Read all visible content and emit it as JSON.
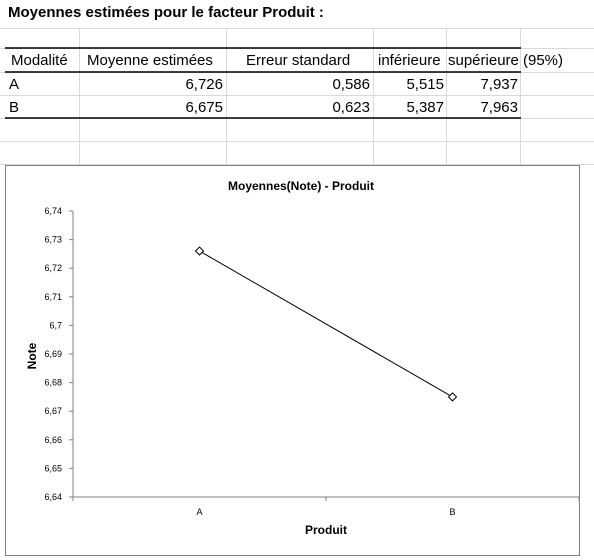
{
  "sheet": {
    "title": "Moyennes estimées pour le facteur Produit :",
    "headers": [
      "Modalité",
      "Moyenne estimées",
      "Erreur standard",
      "inférieure",
      "supérieure",
      "(95%)"
    ],
    "rows": [
      [
        "A",
        "6,726",
        "0,586",
        "5,515",
        "7,937"
      ],
      [
        "B",
        "6,675",
        "0,623",
        "5,387",
        "7,963"
      ]
    ]
  },
  "chart_data": {
    "type": "line",
    "title": "Moyennes(Note) - Produit",
    "xlabel": "Produit",
    "ylabel": "Note",
    "categories": [
      "A",
      "B"
    ],
    "series": [
      {
        "values": [
          6.726,
          6.675
        ]
      }
    ],
    "ylim": [
      6.64,
      6.74
    ],
    "yticks": [
      "6,64",
      "6,65",
      "6,66",
      "6,67",
      "6,68",
      "6,69",
      "6,7",
      "6,71",
      "6,72",
      "6,73",
      "6,74"
    ],
    "grid": false,
    "marker": "diamond"
  }
}
